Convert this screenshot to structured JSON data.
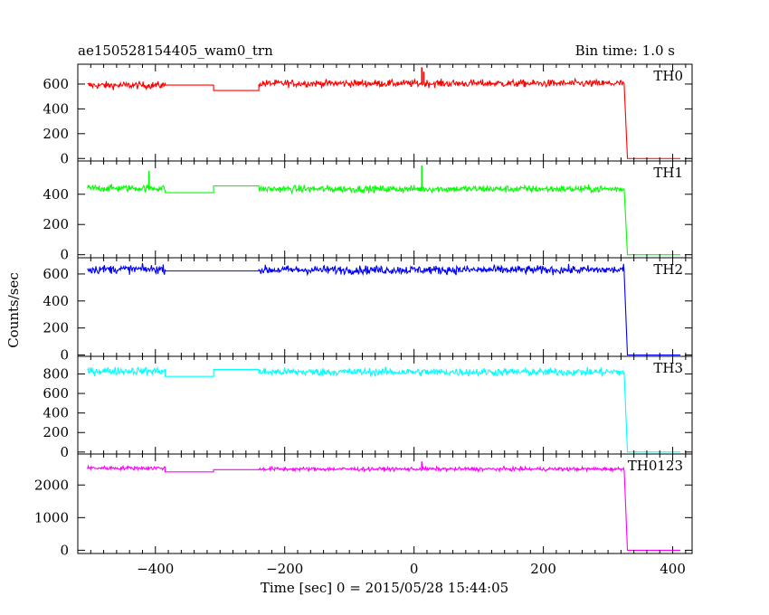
{
  "header": {
    "left_title": "ae150528154405_wam0_trn",
    "right_title": "Bin time: 1.0 s"
  },
  "xlabel": "Time [sec] 0 = 2015/05/28 15:44:05",
  "ylabel": "Counts/sec",
  "chart_data": {
    "type": "line",
    "xlim": [
      -520,
      430
    ],
    "xticks": [
      -400,
      -200,
      0,
      200,
      400
    ],
    "xtick_labels": [
      "−400",
      "−200",
      "0",
      "200",
      "400"
    ],
    "grid": false,
    "legend": "none",
    "panels": [
      {
        "label": "TH0",
        "color": "#ff0000",
        "ylim": [
          -20,
          760
        ],
        "yticks": [
          0,
          200,
          400,
          600
        ],
        "ytick_labels": [
          "0",
          "200",
          "400",
          "600"
        ],
        "noise": 28,
        "segments": [
          {
            "x": [
              -505,
              -385
            ],
            "y": 590,
            "noisy": true
          },
          {
            "x": [
              -385,
              -310
            ],
            "y": 592
          },
          {
            "x": [
              -310,
              -240
            ],
            "y": 548
          },
          {
            "x": [
              -240,
              325
            ],
            "y": 605,
            "noisy": true
          },
          {
            "x": [
              330,
              412
            ],
            "y": 0
          }
        ],
        "drop": {
          "x": [
            325,
            330
          ],
          "from": 590,
          "to": 0
        },
        "spikes": [
          {
            "x": 12,
            "y": 735
          },
          {
            "x": 15,
            "y": 700
          }
        ]
      },
      {
        "label": "TH1",
        "color": "#00ff00",
        "ylim": [
          -20,
          620
        ],
        "yticks": [
          0,
          200,
          400
        ],
        "ytick_labels": [
          "0",
          "200",
          "400"
        ],
        "noise": 22,
        "segments": [
          {
            "x": [
              -505,
              -385
            ],
            "y": 440,
            "noisy": true
          },
          {
            "x": [
              -385,
              -310
            ],
            "y": 410
          },
          {
            "x": [
              -310,
              -240
            ],
            "y": 455
          },
          {
            "x": [
              -240,
              325
            ],
            "y": 435,
            "noisy": true
          },
          {
            "x": [
              330,
              412
            ],
            "y": 0
          }
        ],
        "drop": {
          "x": [
            325,
            330
          ],
          "from": 435,
          "to": 0
        },
        "spikes": [
          {
            "x": 12,
            "y": 590
          },
          {
            "x": -410,
            "y": 555
          }
        ]
      },
      {
        "label": "TH2",
        "color": "#0000ff",
        "ylim": [
          -10,
          720
        ],
        "yticks": [
          0,
          200,
          400,
          600
        ],
        "ytick_labels": [
          "0",
          "200",
          "400",
          "600"
        ],
        "noise": 30,
        "segments": [
          {
            "x": [
              -505,
              -385
            ],
            "y": 635,
            "noisy": true
          },
          {
            "x": [
              -385,
              -240
            ],
            "y": 622
          },
          {
            "x": [
              -240,
              325
            ],
            "y": 630,
            "noisy": true
          },
          {
            "x": [
              330,
              412
            ],
            "y": 0
          }
        ],
        "drop": {
          "x": [
            325,
            330
          ],
          "from": 600,
          "to": 0
        },
        "spikes": []
      },
      {
        "label": "TH3",
        "color": "#00ffff",
        "ylim": [
          -20,
          980
        ],
        "yticks": [
          0,
          200,
          400,
          600,
          800
        ],
        "ytick_labels": [
          "0",
          "200",
          "400",
          "600",
          "800"
        ],
        "noise": 38,
        "segments": [
          {
            "x": [
              -505,
              -385
            ],
            "y": 830,
            "noisy": true
          },
          {
            "x": [
              -385,
              -310
            ],
            "y": 775
          },
          {
            "x": [
              -310,
              -240
            ],
            "y": 845
          },
          {
            "x": [
              -240,
              325
            ],
            "y": 820,
            "noisy": true
          },
          {
            "x": [
              330,
              412
            ],
            "y": 0
          }
        ],
        "drop": {
          "x": [
            325,
            330
          ],
          "from": 800,
          "to": 0
        },
        "spikes": []
      },
      {
        "label": "TH0123",
        "color": "#ff00ff",
        "ylim": [
          -100,
          2950
        ],
        "yticks": [
          0,
          1000,
          2000
        ],
        "ytick_labels": [
          "0",
          "1000",
          "2000"
        ],
        "noise": 55,
        "segments": [
          {
            "x": [
              -505,
              -385
            ],
            "y": 2520,
            "noisy": true
          },
          {
            "x": [
              -385,
              -310
            ],
            "y": 2400
          },
          {
            "x": [
              -310,
              -240
            ],
            "y": 2470
          },
          {
            "x": [
              -240,
              325
            ],
            "y": 2490,
            "noisy": true
          },
          {
            "x": [
              330,
              412
            ],
            "y": 0
          }
        ],
        "drop": {
          "x": [
            325,
            330
          ],
          "from": 2450,
          "to": 0
        },
        "spikes": [
          {
            "x": 12,
            "y": 2720
          }
        ]
      }
    ]
  }
}
